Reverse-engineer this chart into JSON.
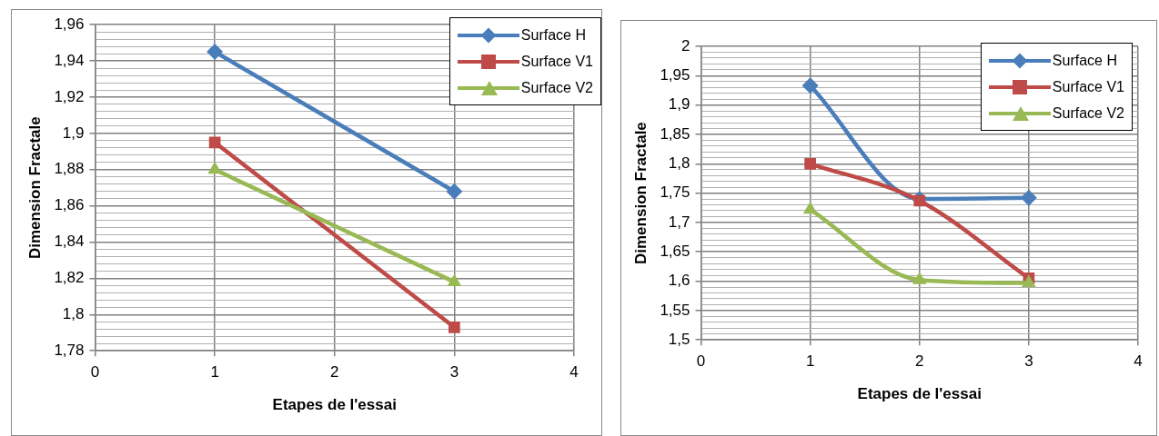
{
  "chart_data": [
    {
      "type": "line",
      "xlabel": "Etapes de l'essai",
      "ylabel": "Dimension Fractale",
      "legend": "top right",
      "grid": true,
      "line_style": "solid",
      "xlim": [
        0,
        4
      ],
      "xticks": [
        0,
        1,
        2,
        3,
        4
      ],
      "ylim": [
        1.78,
        1.96
      ],
      "yticks": [
        {
          "value": 1.78,
          "label": "1,78"
        },
        {
          "value": 1.784,
          "label": null
        },
        {
          "value": 1.788,
          "label": null
        },
        {
          "value": 1.792,
          "label": null
        },
        {
          "value": 1.796,
          "label": null
        },
        {
          "value": 1.8,
          "label": "1,8"
        },
        {
          "value": 1.804,
          "label": null
        },
        {
          "value": 1.808,
          "label": null
        },
        {
          "value": 1.812,
          "label": null
        },
        {
          "value": 1.816,
          "label": null
        },
        {
          "value": 1.82,
          "label": "1,82"
        },
        {
          "value": 1.824,
          "label": null
        },
        {
          "value": 1.828,
          "label": null
        },
        {
          "value": 1.832,
          "label": null
        },
        {
          "value": 1.836,
          "label": null
        },
        {
          "value": 1.84,
          "label": "1,84"
        },
        {
          "value": 1.844,
          "label": null
        },
        {
          "value": 1.848,
          "label": null
        },
        {
          "value": 1.852,
          "label": null
        },
        {
          "value": 1.856,
          "label": null
        },
        {
          "value": 1.86,
          "label": "1,86"
        },
        {
          "value": 1.864,
          "label": null
        },
        {
          "value": 1.868,
          "label": null
        },
        {
          "value": 1.872,
          "label": null
        },
        {
          "value": 1.876,
          "label": null
        },
        {
          "value": 1.88,
          "label": "1,88"
        },
        {
          "value": 1.884,
          "label": null
        },
        {
          "value": 1.888,
          "label": null
        },
        {
          "value": 1.892,
          "label": null
        },
        {
          "value": 1.896,
          "label": null
        },
        {
          "value": 1.9,
          "label": "1,9"
        },
        {
          "value": 1.904,
          "label": null
        },
        {
          "value": 1.908,
          "label": null
        },
        {
          "value": 1.912,
          "label": null
        },
        {
          "value": 1.916,
          "label": null
        },
        {
          "value": 1.92,
          "label": "1,92"
        },
        {
          "value": 1.924,
          "label": null
        },
        {
          "value": 1.928,
          "label": null
        },
        {
          "value": 1.932,
          "label": null
        },
        {
          "value": 1.936,
          "label": null
        },
        {
          "value": 1.94,
          "label": "1,94"
        },
        {
          "value": 1.944,
          "label": null
        },
        {
          "value": 1.948,
          "label": null
        },
        {
          "value": 1.952,
          "label": null
        },
        {
          "value": 1.956,
          "label": null
        },
        {
          "value": 1.96,
          "label": "1,96"
        }
      ],
      "x": [
        1,
        3
      ],
      "series": [
        {
          "name": "Surface H",
          "color": "#4a7ebb",
          "marker": "diamond",
          "values": [
            1.945,
            1.868
          ]
        },
        {
          "name": "Surface V1",
          "color": "#be4b48",
          "marker": "square",
          "values": [
            1.895,
            1.793
          ]
        },
        {
          "name": "Surface V2",
          "color": "#98b954",
          "marker": "triangle",
          "values": [
            1.88,
            1.818
          ]
        }
      ]
    },
    {
      "type": "line",
      "xlabel": "Etapes de l'essai",
      "ylabel": "Dimension Fractale",
      "legend": "top right",
      "grid": true,
      "line_style": "solid",
      "xlim": [
        0,
        4
      ],
      "xticks": [
        0,
        1,
        2,
        3,
        4
      ],
      "ylim": [
        1.5,
        2
      ],
      "yticks": [
        {
          "value": 1.5,
          "label": "1,5"
        },
        {
          "value": 1.51,
          "label": null
        },
        {
          "value": 1.52,
          "label": null
        },
        {
          "value": 1.53,
          "label": null
        },
        {
          "value": 1.54,
          "label": null
        },
        {
          "value": 1.55,
          "label": "1,55"
        },
        {
          "value": 1.56,
          "label": null
        },
        {
          "value": 1.57,
          "label": null
        },
        {
          "value": 1.58,
          "label": null
        },
        {
          "value": 1.59,
          "label": null
        },
        {
          "value": 1.6,
          "label": "1,6"
        },
        {
          "value": 1.61,
          "label": null
        },
        {
          "value": 1.62,
          "label": null
        },
        {
          "value": 1.63,
          "label": null
        },
        {
          "value": 1.64,
          "label": null
        },
        {
          "value": 1.65,
          "label": "1,65"
        },
        {
          "value": 1.66,
          "label": null
        },
        {
          "value": 1.67,
          "label": null
        },
        {
          "value": 1.68,
          "label": null
        },
        {
          "value": 1.69,
          "label": null
        },
        {
          "value": 1.7,
          "label": "1,7"
        },
        {
          "value": 1.71,
          "label": null
        },
        {
          "value": 1.72,
          "label": null
        },
        {
          "value": 1.73,
          "label": null
        },
        {
          "value": 1.74,
          "label": null
        },
        {
          "value": 1.75,
          "label": "1,75"
        },
        {
          "value": 1.76,
          "label": null
        },
        {
          "value": 1.77,
          "label": null
        },
        {
          "value": 1.78,
          "label": null
        },
        {
          "value": 1.79,
          "label": null
        },
        {
          "value": 1.8,
          "label": "1,8"
        },
        {
          "value": 1.81,
          "label": null
        },
        {
          "value": 1.82,
          "label": null
        },
        {
          "value": 1.83,
          "label": null
        },
        {
          "value": 1.84,
          "label": null
        },
        {
          "value": 1.85,
          "label": "1,85"
        },
        {
          "value": 1.86,
          "label": null
        },
        {
          "value": 1.87,
          "label": null
        },
        {
          "value": 1.88,
          "label": null
        },
        {
          "value": 1.89,
          "label": null
        },
        {
          "value": 1.9,
          "label": "1,9"
        },
        {
          "value": 1.91,
          "label": null
        },
        {
          "value": 1.92,
          "label": null
        },
        {
          "value": 1.93,
          "label": null
        },
        {
          "value": 1.94,
          "label": null
        },
        {
          "value": 1.95,
          "label": "1,95"
        },
        {
          "value": 1.96,
          "label": null
        },
        {
          "value": 1.97,
          "label": null
        },
        {
          "value": 1.98,
          "label": null
        },
        {
          "value": 1.99,
          "label": null
        },
        {
          "value": 2,
          "label": "2"
        }
      ],
      "x": [
        1,
        2,
        3
      ],
      "series": [
        {
          "name": "Surface H",
          "color": "#4a7ebb",
          "marker": "diamond",
          "values": [
            1.933,
            1.74,
            1.742
          ]
        },
        {
          "name": "Surface V1",
          "color": "#be4b48",
          "marker": "square",
          "values": [
            1.8,
            1.737,
            1.605
          ]
        },
        {
          "name": "Surface V2",
          "color": "#98b954",
          "marker": "triangle",
          "values": [
            1.722,
            1.602,
            1.597
          ]
        }
      ]
    }
  ]
}
